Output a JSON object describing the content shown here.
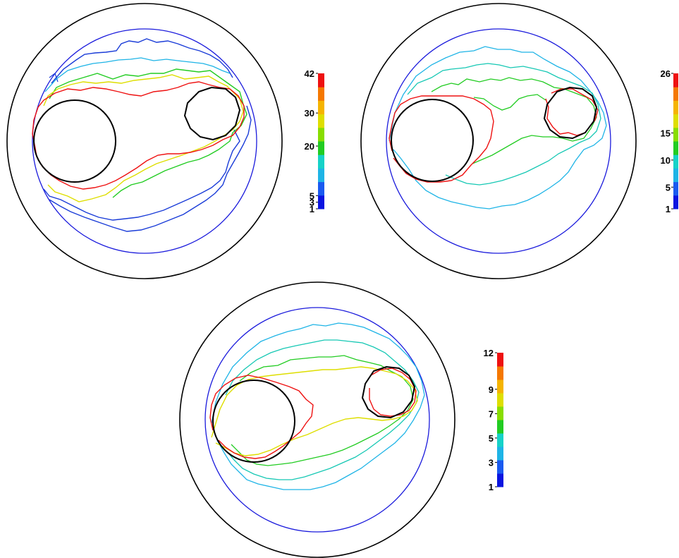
{
  "panels": [
    {
      "id": "top-left",
      "colorbar": {
        "min": 1,
        "max": 42,
        "ticks": [
          {
            "value": 42,
            "label": "42"
          },
          {
            "value": 30,
            "label": "30"
          },
          {
            "value": 20,
            "label": "20"
          },
          {
            "value": 5,
            "label": "5"
          },
          {
            "value": 3,
            "label": "3"
          },
          {
            "value": 1,
            "label": "1"
          }
        ]
      }
    },
    {
      "id": "top-right",
      "colorbar": {
        "min": 1,
        "max": 26,
        "ticks": [
          {
            "value": 26,
            "label": "26"
          },
          {
            "value": 15,
            "label": "15"
          },
          {
            "value": 10,
            "label": "10"
          },
          {
            "value": 5,
            "label": "5"
          },
          {
            "value": 1,
            "label": "1"
          }
        ]
      }
    },
    {
      "id": "bottom",
      "colorbar": {
        "min": 1,
        "max": 12,
        "ticks": [
          {
            "value": 12,
            "label": "12"
          },
          {
            "value": 9,
            "label": "9"
          },
          {
            "value": 7,
            "label": "7"
          },
          {
            "value": 5,
            "label": "5"
          },
          {
            "value": 3,
            "label": "3"
          },
          {
            "value": 1,
            "label": "1"
          }
        ]
      }
    }
  ],
  "colors": {
    "outer_ring": "#000000",
    "domain_boundary": "#1a1adc",
    "obstacle": "#000000",
    "contour_red": "#ee1111",
    "contour_yellow": "#dede00",
    "contour_green": "#22cc22",
    "contour_teal": "#16c8b4",
    "contour_cyan": "#1eb4e6",
    "contour_blue": "#1a3cd8"
  }
}
